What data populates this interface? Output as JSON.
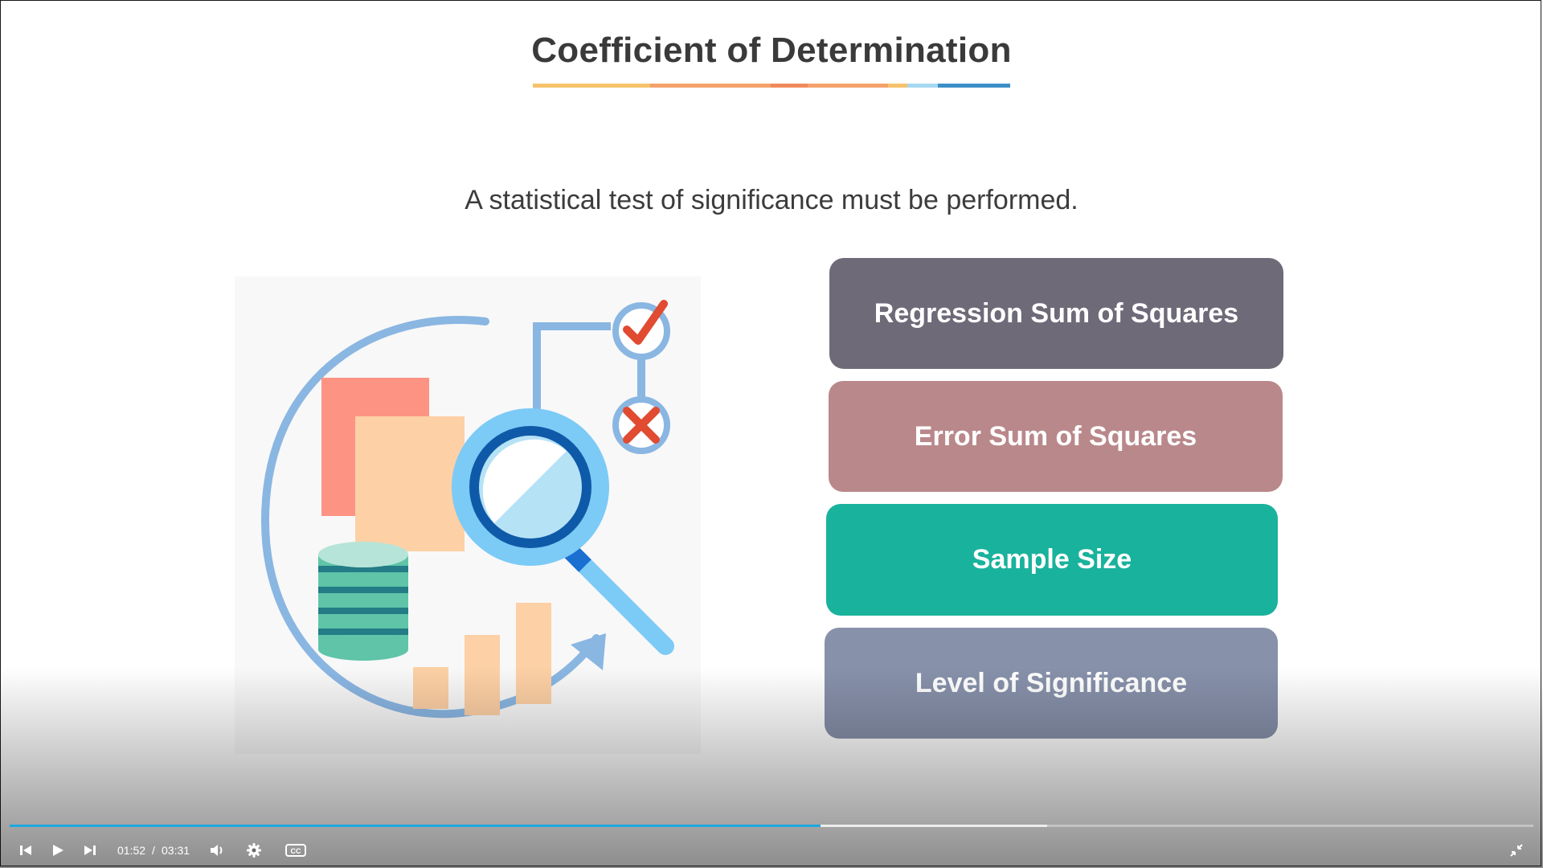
{
  "slide": {
    "title": "Coefficient of Determination",
    "subtitle": "A statistical test of significance must be performed."
  },
  "options": [
    {
      "label": "Regression Sum of Squares",
      "color": "#6e6a78"
    },
    {
      "label": "Error Sum of Squares",
      "color": "#b9888b"
    },
    {
      "label": "Sample Size",
      "color": "#19b29c"
    },
    {
      "label": "Level of Significance",
      "color": "#8791aa"
    }
  ],
  "illustration": {
    "icons": [
      "documents-icon",
      "database-icon",
      "bar-chart-icon",
      "magnifier-icon",
      "check-mark-icon",
      "cross-mark-icon",
      "circular-arrow-icon"
    ]
  },
  "player": {
    "current_time": "01:52",
    "separator": "/",
    "duration": "03:31",
    "played_fraction": 0.532,
    "buffered_fraction": 0.681,
    "accent_color": "#1ba8e0",
    "icons": [
      "skip-back-icon",
      "play-icon",
      "skip-forward-icon",
      "volume-icon",
      "settings-gear-icon",
      "closed-captions-icon",
      "exit-fullscreen-icon"
    ]
  },
  "colors": {
    "title_underline": [
      "#f6c26b",
      "#f4a16a",
      "#f08a5d",
      "#f6c26b",
      "#a6d8f2",
      "#3d8fc7"
    ]
  }
}
